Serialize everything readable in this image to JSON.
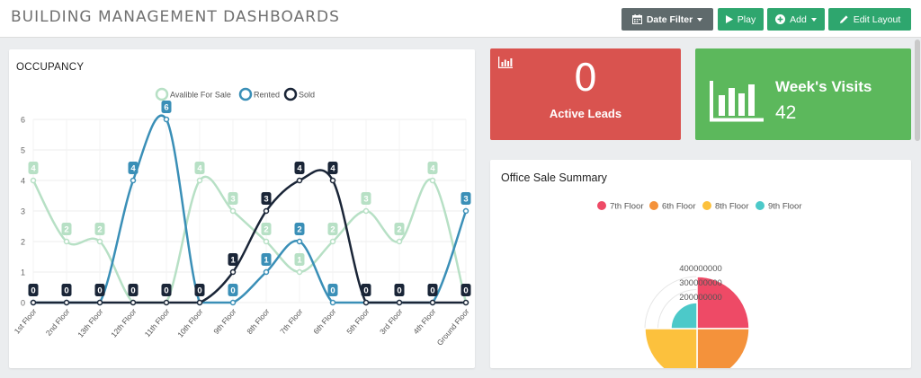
{
  "header": {
    "title": "BUILDING MANAGEMENT DASHBOARDS",
    "date_filter_label": "Date Filter",
    "play_label": "Play",
    "add_label": "Add",
    "edit_layout_label": "Edit Layout"
  },
  "occupancy": {
    "title": "OCCUPANCY"
  },
  "leads_tile": {
    "value": "0",
    "label": "Active Leads",
    "color": "#d9534f"
  },
  "visits_tile": {
    "title": "Week's Visits",
    "value": "42",
    "color": "#5cb85c"
  },
  "sale_summary": {
    "title": "Office Sale Summary"
  },
  "chart_data": [
    {
      "type": "line",
      "title": "OCCUPANCY",
      "categories": [
        "1st Floor",
        "2nd Floor",
        "13th Floor",
        "12th Floor",
        "11th Floor",
        "10th Floor",
        "9th Floor",
        "8th Floor",
        "7th Floor",
        "6th Floor",
        "5th Floor",
        "3rd Floor",
        "4th Floor",
        "Ground Floor"
      ],
      "ylim": [
        0,
        6
      ],
      "yticks": [
        "0",
        "1",
        "2",
        "3",
        "4",
        "5",
        "6"
      ],
      "grid": true,
      "legend_position": "top",
      "series": [
        {
          "name": "Avalible For Sale",
          "color": "#b7e0c5",
          "values": [
            4,
            2,
            2,
            0,
            0,
            4,
            3,
            2,
            1,
            2,
            3,
            2,
            4,
            0
          ]
        },
        {
          "name": "Rented",
          "color": "#3a8fb7",
          "values": [
            0,
            0,
            0,
            4,
            6,
            0,
            0,
            1,
            2,
            0,
            0,
            0,
            0,
            3
          ]
        },
        {
          "name": "Sold",
          "color": "#1a2537",
          "values": [
            0,
            0,
            0,
            0,
            0,
            0,
            1,
            3,
            4,
            4,
            0,
            0,
            0,
            0
          ]
        }
      ]
    },
    {
      "type": "pie",
      "title": "Office Sale Summary",
      "subtype": "polar-area",
      "legend_position": "top",
      "radial_ticks": [
        "400000000",
        "300000000",
        "200000000"
      ],
      "categories": [
        "7th Floor",
        "6th Floor",
        "8th Floor",
        "9th Floor"
      ],
      "values": [
        400000000,
        400000000,
        400000000,
        200000000
      ],
      "colors": [
        "#ee4a66",
        "#f4923b",
        "#fcc13d",
        "#4cc9c9"
      ]
    }
  ]
}
